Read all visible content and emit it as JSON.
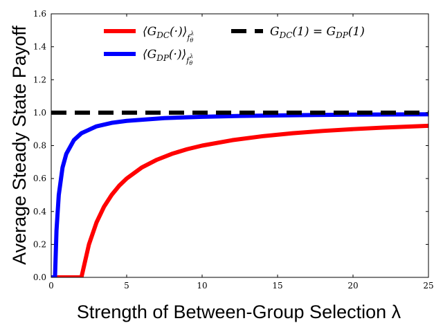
{
  "chart_data": {
    "type": "line",
    "title": "",
    "xlabel": "Strength of Between-Group Selection λ",
    "ylabel": "Average Steady State Payoff",
    "xlim": [
      0,
      25
    ],
    "ylim": [
      0,
      1.6
    ],
    "x_ticks": [
      "0",
      "5",
      "10",
      "15",
      "20",
      "25"
    ],
    "y_ticks": [
      "0.0",
      "0.2",
      "0.4",
      "0.6",
      "0.8",
      "1.0",
      "1.2",
      "1.4",
      "1.6"
    ],
    "grid": false,
    "legend_position": "top",
    "series": [
      {
        "name": "⟨G_DC(·)⟩_{f_θ^λ}",
        "color": "#ff0000",
        "style": "solid",
        "x": [
          0,
          0.5,
          1.0,
          1.5,
          2.0,
          2.5,
          3.0,
          3.5,
          4.0,
          4.5,
          5.0,
          6.0,
          7.0,
          8.0,
          9.0,
          10.0,
          12.0,
          14.0,
          16.0,
          18.0,
          20.0,
          22.0,
          25.0
        ],
        "y": [
          0,
          0,
          0,
          0,
          0,
          0.2,
          0.333,
          0.429,
          0.5,
          0.556,
          0.6,
          0.667,
          0.714,
          0.75,
          0.778,
          0.8,
          0.833,
          0.857,
          0.875,
          0.889,
          0.9,
          0.909,
          0.92
        ]
      },
      {
        "name": "⟨G_DP(·)⟩_{f_θ^λ}",
        "color": "#0000ff",
        "style": "solid",
        "x": [
          0,
          0.25,
          0.35,
          0.5,
          0.75,
          1.0,
          1.5,
          2.0,
          3.0,
          4.0,
          5.0,
          7.5,
          10.0,
          12.5,
          15.0,
          17.5,
          20.0,
          22.5,
          25.0
        ],
        "y": [
          0,
          0,
          0.286,
          0.5,
          0.667,
          0.75,
          0.833,
          0.875,
          0.917,
          0.938,
          0.95,
          0.967,
          0.975,
          0.98,
          0.983,
          0.986,
          0.988,
          0.989,
          0.99
        ]
      },
      {
        "name": "G_DC(1) = G_DP(1)",
        "color": "#000000",
        "style": "dashed",
        "x": [
          0,
          25
        ],
        "y": [
          1.0,
          1.0
        ]
      }
    ],
    "legend_entries": [
      {
        "series": 0,
        "parts": [
          "⟨G",
          "DC",
          "(·)⟩",
          "f",
          "θ",
          "λ"
        ]
      },
      {
        "series": 1,
        "parts": [
          "⟨G",
          "DP",
          "(·)⟩",
          "f",
          "θ",
          "λ"
        ]
      },
      {
        "series": 2,
        "parts": [
          "G",
          "DC",
          "(1) = G",
          "DP",
          "(1)"
        ]
      }
    ]
  }
}
